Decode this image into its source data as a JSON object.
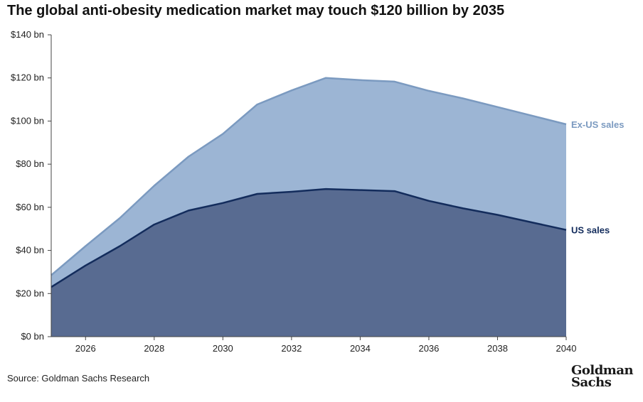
{
  "title": "The global anti-obesity medication market may touch $120 billion by 2035",
  "source": "Source: Goldman Sachs Research",
  "logo": {
    "line1": "Goldman",
    "line2": "Sachs"
  },
  "colors": {
    "us_fill": "#586b91",
    "us_line": "#132c5c",
    "exus_fill": "#9cb5d4",
    "exus_line": "#7b9ac0",
    "us_label": "#132c5c",
    "exus_label": "#7b9ac0"
  },
  "chart_data": {
    "type": "area",
    "stacked": true,
    "title": "The global anti-obesity medication market may touch $120 billion by 2035",
    "xlabel": "",
    "ylabel": "",
    "x": [
      2025,
      2026,
      2027,
      2028,
      2029,
      2030,
      2031,
      2032,
      2033,
      2034,
      2035,
      2036,
      2037,
      2038,
      2039,
      2040
    ],
    "xlim": [
      2025,
      2040
    ],
    "ylim": [
      0,
      140
    ],
    "x_ticks": [
      2026,
      2028,
      2030,
      2032,
      2034,
      2036,
      2038,
      2040
    ],
    "x_tick_labels": [
      "2026",
      "2028",
      "2030",
      "2032",
      "2034",
      "2036",
      "2038",
      "2040"
    ],
    "y_ticks": [
      0,
      20,
      40,
      60,
      80,
      100,
      120,
      140
    ],
    "y_tick_labels": [
      "$0 bn",
      "$20 bn",
      "$40 bn",
      "$60 bn",
      "$80 bn",
      "$100 bn",
      "$120 bn",
      "$140 bn"
    ],
    "grid": false,
    "series": [
      {
        "name": "US sales",
        "values": [
          23,
          33,
          42,
          52,
          58.5,
          62,
          66.2,
          67.2,
          68.5,
          68,
          67.5,
          63,
          59.5,
          56.5,
          53,
          49.5
        ]
      },
      {
        "name": "Ex-US sales",
        "values": [
          5.5,
          9,
          13,
          18,
          25,
          32,
          41.5,
          47,
          51.5,
          51,
          50.8,
          51,
          51,
          50,
          49.5,
          49
        ]
      }
    ],
    "series_total": [
      28.5,
      42,
      55,
      70,
      83.5,
      94,
      107.7,
      114.2,
      120,
      119,
      118.3,
      114,
      110.5,
      106.5,
      102.5,
      98.5
    ]
  }
}
